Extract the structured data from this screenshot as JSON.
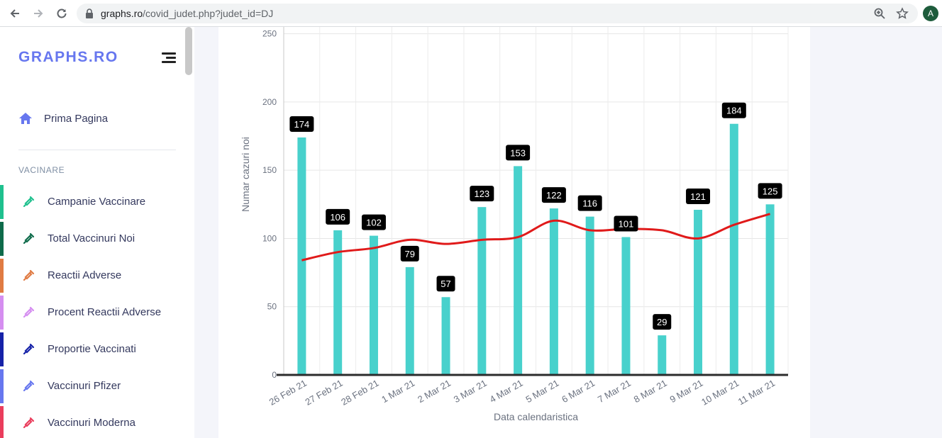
{
  "browser": {
    "url_host": "graphs.ro",
    "url_path": "/covid_judet.php?judet_id=DJ",
    "avatar_letter": "A"
  },
  "sidebar": {
    "brand": "GRAPHS.RO",
    "home_label": "Prima Pagina",
    "section_label": "VACINARE",
    "items": [
      {
        "label": "Campanie Vaccinare",
        "color": "#1fc08e",
        "icon": "syringe-icon"
      },
      {
        "label": "Total Vaccinuri Noi",
        "color": "#0e6b4a",
        "icon": "syringe-icon"
      },
      {
        "label": "Reactii Adverse",
        "color": "#e07b43",
        "icon": "syringe-icon"
      },
      {
        "label": "Procent Reactii Adverse",
        "color": "#d58ef0",
        "icon": "syringe-icon"
      },
      {
        "label": "Proportie Vaccinati",
        "color": "#1622a8",
        "icon": "syringe-icon"
      },
      {
        "label": "Vaccinuri Pfizer",
        "color": "#6777ef",
        "icon": "syringe-icon"
      },
      {
        "label": "Vaccinuri Moderna",
        "color": "#ea3d5c",
        "icon": "syringe-icon"
      }
    ]
  },
  "chart_data": {
    "type": "bar",
    "categories": [
      "26 Feb 21",
      "27 Feb 21",
      "28 Feb 21",
      "1 Mar 21",
      "2 Mar 21",
      "3 Mar 21",
      "4 Mar 21",
      "5 Mar 21",
      "6 Mar 21",
      "7 Mar 21",
      "8 Mar 21",
      "9 Mar 21",
      "10 Mar 21",
      "11 Mar 21"
    ],
    "values": [
      174,
      106,
      102,
      79,
      57,
      123,
      153,
      122,
      116,
      101,
      29,
      121,
      184,
      125
    ],
    "trend": [
      84,
      90,
      93,
      99,
      96,
      99,
      101,
      113,
      106,
      107,
      106,
      100,
      110,
      118
    ],
    "xlabel": "Data calendaristica",
    "ylabel": "Numar cazuri noi",
    "ylim": [
      0,
      255
    ],
    "yticks": [
      0,
      50,
      100,
      150,
      200,
      250
    ],
    "bar_color": "#48d1cc",
    "trend_color": "#e01a1a",
    "grid": true
  }
}
